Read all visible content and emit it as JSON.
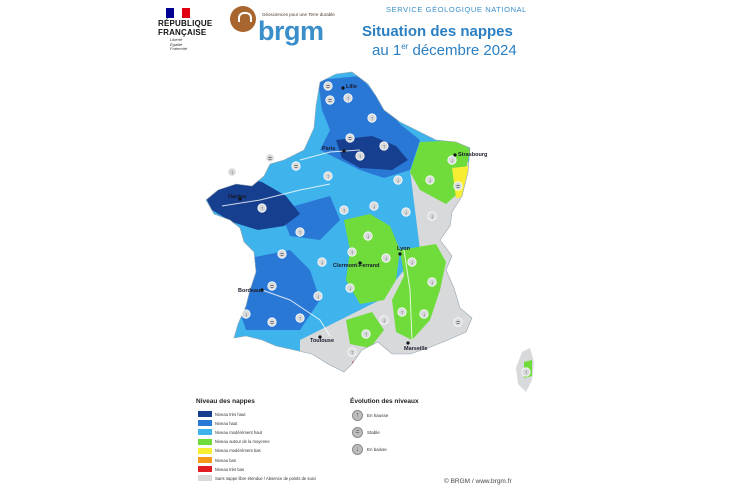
{
  "header": {
    "republique_line1": "RÉPUBLIQUE",
    "republique_line2": "FRANÇAISE",
    "motto": [
      "Liberté",
      "Égalité",
      "Fraternité"
    ],
    "brgm_tagline": "Géosciences pour une Terre durable",
    "brgm_name": "brgm",
    "service": "SERVICE GÉOLOGIQUE NATIONAL",
    "title": "Situation des nappes",
    "date_prefix": "au 1",
    "date_sup": "er",
    "date_suffix": " décembre 2024"
  },
  "colors": {
    "tres_haut": "#173f8f",
    "haut": "#2a78d6",
    "moderement_haut": "#3fb4ec",
    "autour_moyenne": "#6fdc3c",
    "moderement_bas": "#f7ee34",
    "bas": "#f49a1c",
    "tres_bas": "#e21c23",
    "sans_nappe": "#d7d9db",
    "brand_blue": "#2b7fc3"
  },
  "cities": [
    {
      "name": "Lille"
    },
    {
      "name": "Paris"
    },
    {
      "name": "Strasbourg"
    },
    {
      "name": "Nantes"
    },
    {
      "name": "Lyon"
    },
    {
      "name": "Clermont-Ferrand"
    },
    {
      "name": "Bordeaux"
    },
    {
      "name": "Toulouse"
    },
    {
      "name": "Marseille"
    }
  ],
  "legend": {
    "title": "Niveau des nappes",
    "items": [
      {
        "label": "Niveau très haut",
        "color": "#173f8f"
      },
      {
        "label": "Niveau haut",
        "color": "#2a78d6"
      },
      {
        "label": "Niveau modérément haut",
        "color": "#3fb4ec"
      },
      {
        "label": "Niveau autour de la moyenne",
        "color": "#6fdc3c"
      },
      {
        "label": "Niveau modérément bas",
        "color": "#f7ee34"
      },
      {
        "label": "Niveau bas",
        "color": "#f49a1c"
      },
      {
        "label": "Niveau très bas",
        "color": "#e21c23"
      },
      {
        "label": "Sans nappe libre étendue / Absence de points de suivi",
        "color": "#d7d9db"
      }
    ]
  },
  "evolution": {
    "title": "Évolution des niveaux",
    "items": [
      {
        "label": "En hausse",
        "icon": "arrow-up-icon",
        "glyph": "↑"
      },
      {
        "label": "Stable",
        "icon": "equals-icon",
        "glyph": "="
      },
      {
        "label": "En baisse",
        "icon": "arrow-down-icon",
        "glyph": "↓"
      }
    ]
  },
  "copyright": "© BRGM / www.brgm.fr"
}
